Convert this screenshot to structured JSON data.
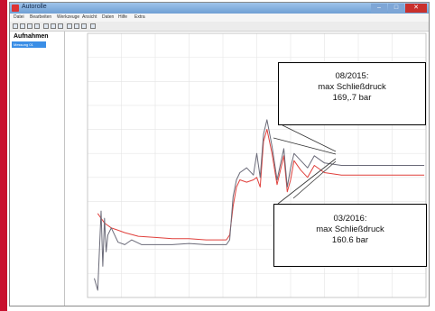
{
  "window": {
    "title": "Autorolle",
    "controls": {
      "minimize": "–",
      "maximize": "□",
      "close": "✕"
    }
  },
  "menu": [
    "Datei",
    "Bearbeiten",
    "Werkzeuge",
    "Ansicht",
    "Daten",
    "Hilfe",
    "Extra"
  ],
  "sidebar": {
    "header": "Aufnahmen",
    "selected_item": "Messung 01"
  },
  "callouts": [
    {
      "date": "08/2015:",
      "label": "max Schließdruck",
      "value": "169,.7 bar"
    },
    {
      "date": "03/2016:",
      "label": "max Schließdruck",
      "value": "160.6 bar"
    }
  ],
  "colors": {
    "series_red": "#e0403c",
    "series_grey": "#6a6a78",
    "grid": "#e4e4e4",
    "axis_label": "#e05050"
  },
  "chart_data": {
    "type": "line",
    "xlim": [
      0,
      10
    ],
    "ylim": [
      0,
      11
    ],
    "xlabel": "",
    "ylabel": "",
    "series": [
      {
        "color": "#e0403c",
        "x": [
          0.3,
          0.4,
          0.5,
          0.6,
          0.7,
          0.9,
          1.1,
          1.5,
          2.0,
          2.5,
          3.0,
          3.5,
          3.9,
          4.1,
          4.2,
          4.3,
          4.4,
          4.5,
          4.7,
          4.9,
          5.0,
          5.1,
          5.2,
          5.3,
          5.45,
          5.6,
          5.8,
          5.9,
          6.0,
          6.1,
          6.3,
          6.5,
          6.7,
          7.0,
          7.5,
          8.0,
          9.0,
          9.95
        ],
        "y": [
          3.5,
          3.3,
          3.1,
          3.0,
          2.9,
          2.8,
          2.7,
          2.55,
          2.5,
          2.45,
          2.45,
          2.4,
          2.4,
          2.4,
          2.6,
          3.8,
          4.6,
          4.9,
          4.8,
          4.9,
          5.0,
          4.6,
          6.5,
          7.0,
          6.0,
          4.7,
          5.9,
          4.4,
          4.9,
          5.7,
          5.3,
          5.0,
          5.5,
          5.2,
          5.1,
          5.1,
          5.1,
          5.1
        ]
      },
      {
        "color": "#6a6a78",
        "x": [
          0.2,
          0.3,
          0.4,
          0.45,
          0.5,
          0.55,
          0.6,
          0.7,
          0.9,
          1.1,
          1.3,
          1.6,
          2.0,
          2.5,
          3.0,
          3.5,
          3.9,
          4.1,
          4.2,
          4.3,
          4.4,
          4.5,
          4.7,
          4.9,
          5.0,
          5.1,
          5.2,
          5.3,
          5.45,
          5.6,
          5.8,
          5.9,
          6.0,
          6.1,
          6.3,
          6.5,
          6.7,
          7.0,
          7.5,
          8.0,
          9.0,
          9.95
        ],
        "y": [
          0.8,
          0.3,
          3.6,
          1.3,
          3.3,
          1.9,
          2.6,
          2.9,
          2.3,
          2.2,
          2.4,
          2.2,
          2.2,
          2.2,
          2.25,
          2.2,
          2.2,
          2.2,
          2.4,
          4.2,
          4.9,
          5.2,
          5.4,
          5.1,
          6.0,
          5.0,
          6.8,
          7.4,
          6.3,
          4.9,
          6.2,
          4.6,
          5.4,
          6.0,
          5.7,
          5.4,
          5.9,
          5.6,
          5.5,
          5.5,
          5.5,
          5.5
        ]
      }
    ]
  }
}
